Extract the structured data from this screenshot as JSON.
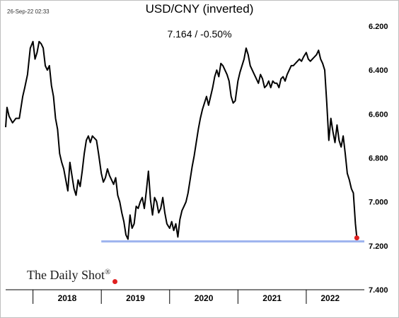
{
  "header": {
    "timestamp": "26-Sep-22 02:33",
    "title": "USD/CNY (inverted)",
    "subtitle": "7.164  /  -0.50%"
  },
  "watermark": {
    "text": "The Daily Shot",
    "mark": "®"
  },
  "colors": {
    "line": "#000000",
    "reference_line": "#9db3ee",
    "last_point": "#e02020",
    "axis": "#000000"
  },
  "chart_data": {
    "type": "line",
    "title": "USD/CNY (inverted)",
    "subtitle": "7.164  /  -0.50%",
    "y_inverted": true,
    "ylim": [
      6.2,
      7.4
    ],
    "ytick_labels": [
      "6.200",
      "6.400",
      "6.600",
      "6.800",
      "7.000",
      "7.200",
      "7.400"
    ],
    "yticks": [
      6.2,
      6.4,
      6.6,
      6.8,
      7.0,
      7.2,
      7.4
    ],
    "xlim": [
      2017.6,
      2022.85
    ],
    "x_labels": [
      {
        "label": "2018",
        "at": 2018.5
      },
      {
        "label": "2019",
        "at": 2019.5
      },
      {
        "label": "2020",
        "at": 2020.5
      },
      {
        "label": "2021",
        "at": 2021.5
      },
      {
        "label": "2022",
        "at": 2022.35
      }
    ],
    "year_boundaries": [
      2018.0,
      2019.0,
      2020.0,
      2021.0,
      2022.0
    ],
    "reference_line": {
      "y": 7.18
    },
    "last_value": 7.164,
    "series": [
      {
        "x": [
          2017.6,
          2017.62,
          2017.65,
          2017.7,
          2017.75,
          2017.8,
          2017.85,
          2017.88,
          2017.92,
          2017.96,
          2018.0,
          2018.03,
          2018.06,
          2018.09,
          2018.12,
          2018.15,
          2018.18,
          2018.21,
          2018.24,
          2018.27,
          2018.3,
          2018.33,
          2018.36,
          2018.39,
          2018.42,
          2018.45,
          2018.48,
          2018.51,
          2018.54,
          2018.57,
          2018.6,
          2018.63,
          2018.66,
          2018.69,
          2018.72,
          2018.75,
          2018.78,
          2018.81,
          2018.84,
          2018.87,
          2018.9,
          2018.93,
          2018.96,
          2019.0,
          2019.03,
          2019.06,
          2019.09,
          2019.12,
          2019.15,
          2019.18,
          2019.21,
          2019.24,
          2019.27,
          2019.3,
          2019.33,
          2019.36,
          2019.39,
          2019.42,
          2019.45,
          2019.48,
          2019.51,
          2019.54,
          2019.57,
          2019.6,
          2019.63,
          2019.66,
          2019.69,
          2019.72,
          2019.75,
          2019.78,
          2019.81,
          2019.84,
          2019.87,
          2019.9,
          2019.93,
          2019.96,
          2020.0,
          2020.03,
          2020.06,
          2020.09,
          2020.12,
          2020.15,
          2020.18,
          2020.21,
          2020.24,
          2020.27,
          2020.3,
          2020.33,
          2020.36,
          2020.39,
          2020.42,
          2020.45,
          2020.48,
          2020.51,
          2020.54,
          2020.57,
          2020.6,
          2020.63,
          2020.66,
          2020.69,
          2020.72,
          2020.75,
          2020.78,
          2020.81,
          2020.84,
          2020.87,
          2020.9,
          2020.93,
          2020.96,
          2021.0,
          2021.03,
          2021.06,
          2021.09,
          2021.12,
          2021.15,
          2021.18,
          2021.21,
          2021.24,
          2021.27,
          2021.3,
          2021.33,
          2021.36,
          2021.39,
          2021.42,
          2021.45,
          2021.48,
          2021.51,
          2021.54,
          2021.57,
          2021.6,
          2021.63,
          2021.66,
          2021.69,
          2021.72,
          2021.75,
          2021.78,
          2021.81,
          2021.84,
          2021.87,
          2021.9,
          2021.93,
          2021.96,
          2022.0,
          2022.03,
          2022.06,
          2022.09,
          2022.12,
          2022.15,
          2022.18,
          2022.21,
          2022.24,
          2022.27,
          2022.3,
          2022.33,
          2022.36,
          2022.39,
          2022.42,
          2022.45,
          2022.48,
          2022.51,
          2022.54,
          2022.57,
          2022.6,
          2022.63,
          2022.66,
          2022.69,
          2022.72,
          2022.74
        ],
        "y": [
          6.66,
          6.57,
          6.61,
          6.64,
          6.62,
          6.62,
          6.52,
          6.48,
          6.42,
          6.3,
          6.27,
          6.35,
          6.32,
          6.27,
          6.28,
          6.3,
          6.38,
          6.4,
          6.38,
          6.47,
          6.52,
          6.62,
          6.67,
          6.78,
          6.82,
          6.85,
          6.9,
          6.95,
          6.82,
          6.88,
          6.94,
          6.97,
          6.9,
          6.93,
          6.86,
          6.78,
          6.72,
          6.7,
          6.73,
          6.7,
          6.71,
          6.72,
          6.78,
          6.87,
          6.91,
          6.89,
          6.85,
          6.88,
          6.9,
          6.92,
          6.89,
          6.97,
          7.0,
          7.05,
          7.09,
          7.15,
          7.17,
          7.06,
          7.12,
          7.1,
          7.02,
          7.03,
          7.0,
          6.98,
          7.03,
          6.95,
          6.86,
          6.99,
          7.06,
          6.98,
          7.0,
          7.05,
          7.03,
          6.98,
          7.05,
          7.1,
          7.12,
          7.09,
          7.13,
          7.1,
          7.16,
          7.08,
          7.04,
          7.02,
          7.0,
          6.96,
          6.9,
          6.84,
          6.79,
          6.73,
          6.67,
          6.62,
          6.58,
          6.55,
          6.52,
          6.56,
          6.52,
          6.48,
          6.43,
          6.4,
          6.43,
          6.37,
          6.38,
          6.4,
          6.42,
          6.45,
          6.52,
          6.55,
          6.54,
          6.45,
          6.41,
          6.38,
          6.35,
          6.3,
          6.33,
          6.38,
          6.4,
          6.42,
          6.44,
          6.46,
          6.42,
          6.44,
          6.48,
          6.47,
          6.45,
          6.48,
          6.45,
          6.46,
          6.46,
          6.48,
          6.44,
          6.43,
          6.45,
          6.42,
          6.4,
          6.38,
          6.38,
          6.37,
          6.36,
          6.35,
          6.36,
          6.34,
          6.32,
          6.35,
          6.36,
          6.35,
          6.34,
          6.33,
          6.31,
          6.35,
          6.37,
          6.4,
          6.55,
          6.72,
          6.62,
          6.68,
          6.73,
          6.65,
          6.72,
          6.75,
          6.7,
          6.78,
          6.87,
          6.9,
          6.94,
          6.96,
          7.1,
          7.164
        ]
      }
    ]
  }
}
